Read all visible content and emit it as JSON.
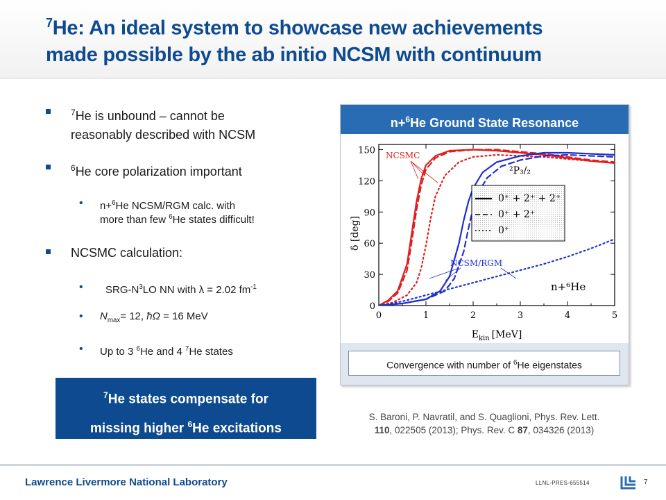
{
  "title": {
    "line1_sup": "7",
    "line1": "He: An ideal system to showcase new achievements",
    "line2": "made possible by the ab initio NCSM with continuum"
  },
  "bullets": {
    "b1_sup": "7",
    "b1_line1": "He is unbound – cannot be",
    "b1_line2": "reasonably described with NCSM",
    "b2_sup": "6",
    "b2": "He core polarization important",
    "b3_pre": "n+",
    "b3_sup": "6",
    "b3_line1": "He NCSM/RGM calc. with",
    "b3_line2_pre": "more than few ",
    "b3_line2_sup": "6",
    "b3_line2": "He states difficult!",
    "b4": "NCSMC calculation:",
    "b5_pre": "SRG-N",
    "b5_sup": "3",
    "b5_mid": "LO NN with ",
    "b5_lambda": "λ",
    "b5_post": " = 2.02 fm",
    "b5_exp": "-1",
    "b6_n": "N",
    "b6_sub": "max",
    "b6_mid": "= 12, ",
    "b6_hbar": "ħΩ",
    "b6_post": " = 16 MeV",
    "b7_pre": "Up to 3 ",
    "b7_sup1": "6",
    "b7_mid": "He and 4 ",
    "b7_sup2": "7",
    "b7_post": "He states"
  },
  "callout": {
    "l1_sup": "7",
    "l1": "He states compensate for",
    "l2_pre": "missing higher ",
    "l2_sup": "6",
    "l2": "He excitations"
  },
  "panel": {
    "head_pre": "n+",
    "head_sup": "6",
    "head": "He Ground State Resonance",
    "caption_pre": "Convergence with number of ",
    "caption_sup": "6",
    "caption": "He eigenstates"
  },
  "chart_data": {
    "type": "line",
    "ylabel": "δ [deg]",
    "xlabel": "E",
    "xlabel_sub": "kin",
    "xlabel_unit": "[MeV]",
    "xlim": [
      0,
      5
    ],
    "ylim": [
      0,
      155
    ],
    "xticks": [
      "0",
      "1",
      "2",
      "3",
      "4",
      "5"
    ],
    "yticks": [
      "0",
      "30",
      "60",
      "90",
      "120",
      "150"
    ],
    "legend_items": [
      {
        "style": "solid",
        "label": "0⁺ + 2⁺ + 2⁺"
      },
      {
        "style": "dashed",
        "label": "0⁺ + 2⁺"
      },
      {
        "style": "dotted",
        "label": "0⁺"
      }
    ],
    "annotations": {
      "ncsmc": "NCSMC",
      "ncsm_rgm": "NCSM/RGM",
      "state": "²P₃/₂",
      "system": "n+⁶He"
    },
    "series": [
      {
        "group": "NCSMC",
        "style": "solid",
        "color": "#e11d1d",
        "x": [
          0,
          0.2,
          0.4,
          0.6,
          0.7,
          0.8,
          0.9,
          1.0,
          1.2,
          1.5,
          2.0,
          2.5,
          3.0,
          3.5,
          4.0,
          4.5,
          5.0
        ],
        "y": [
          0,
          5,
          14,
          40,
          70,
          100,
          122,
          135,
          144,
          149,
          150,
          149,
          147,
          145,
          142,
          139,
          137
        ]
      },
      {
        "group": "NCSMC",
        "style": "dashed",
        "color": "#e11d1d",
        "x": [
          0,
          0.2,
          0.4,
          0.6,
          0.7,
          0.8,
          0.9,
          1.0,
          1.2,
          1.5,
          2.0,
          2.5,
          3.0,
          3.5,
          4.0,
          4.5,
          5.0
        ],
        "y": [
          0,
          4,
          12,
          34,
          62,
          92,
          116,
          131,
          142,
          148,
          150,
          150,
          148,
          146,
          143,
          140,
          138
        ]
      },
      {
        "group": "NCSMC",
        "style": "dotted",
        "color": "#e11d1d",
        "x": [
          0,
          0.3,
          0.6,
          0.8,
          0.9,
          1.0,
          1.1,
          1.2,
          1.4,
          1.7,
          2.0,
          2.5,
          3.0,
          3.5,
          4.0,
          4.5,
          5.0
        ],
        "y": [
          0,
          3,
          10,
          22,
          36,
          58,
          84,
          105,
          125,
          138,
          143,
          145,
          144,
          143,
          141,
          139,
          137
        ]
      },
      {
        "group": "NCSM/RGM",
        "style": "solid",
        "color": "#1f2fd0",
        "x": [
          0,
          0.5,
          1.0,
          1.3,
          1.5,
          1.7,
          1.8,
          1.9,
          2.0,
          2.2,
          2.5,
          3.0,
          3.5,
          4.0,
          4.5,
          5.0
        ],
        "y": [
          0,
          2,
          6,
          14,
          28,
          60,
          82,
          100,
          113,
          128,
          138,
          144,
          147,
          147,
          146,
          145
        ]
      },
      {
        "group": "NCSM/RGM",
        "style": "dashed",
        "color": "#1f2fd0",
        "x": [
          0,
          0.5,
          1.0,
          1.4,
          1.6,
          1.8,
          1.9,
          2.0,
          2.1,
          2.3,
          2.6,
          3.0,
          3.5,
          4.0,
          4.5,
          5.0
        ],
        "y": [
          0,
          2,
          6,
          14,
          26,
          52,
          74,
          94,
          108,
          123,
          134,
          140,
          144,
          145,
          144,
          143
        ]
      },
      {
        "group": "NCSM/RGM",
        "style": "dotted",
        "color": "#1f2fd0",
        "x": [
          0,
          0.5,
          1.0,
          1.5,
          2.0,
          2.5,
          3.0,
          3.5,
          4.0,
          4.5,
          5.0
        ],
        "y": [
          0,
          4,
          10,
          16,
          22,
          28,
          34,
          40,
          47,
          55,
          64
        ]
      }
    ]
  },
  "reference": {
    "line1": "S. Baroni, P. Navratil, and S. Quaglioni, Phys. Rev. Lett.",
    "v1": "110",
    "line2_mid": ", 022505 (2013); Phys. Rev. C ",
    "v2": "87",
    "line2_end": ", 034326 (2013)"
  },
  "footer": {
    "lab": "Lawrence Livermore National Laboratory",
    "code": "LLNL-PRES-655514",
    "page": "7"
  }
}
